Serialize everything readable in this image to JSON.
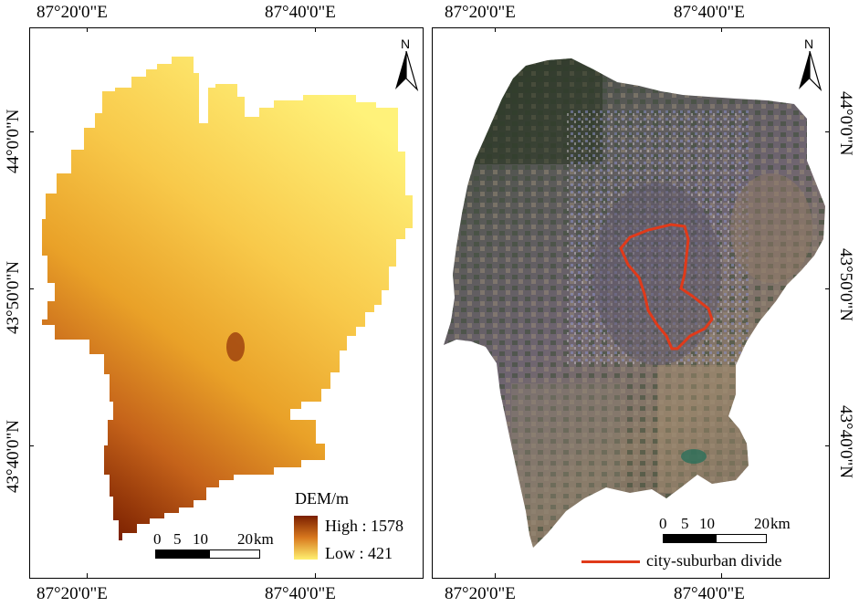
{
  "left_map": {
    "top_labels": [
      "87°20'0\"E",
      "87°40'0\"E"
    ],
    "bottom_labels": [
      "87°20'0\"E",
      "87°40'0\"E"
    ],
    "left_labels": [
      "43°40'0\"N",
      "43°50'0\"N",
      "44°0'0\"N"
    ],
    "north_label": "N",
    "legend": {
      "title": "DEM/m",
      "high": "High : 1578",
      "low": "Low : 421",
      "color_high": "#7a1f00",
      "color_low": "#fff070"
    },
    "scale": {
      "ticks": [
        "0",
        "5",
        "10",
        "20"
      ],
      "unit": "km"
    }
  },
  "right_map": {
    "top_labels": [
      "87°20'0\"E",
      "87°40'0\"E"
    ],
    "bottom_labels": [
      "87°20'0\"E",
      "87°40'0\"E"
    ],
    "right_labels": [
      "44°0'0\"N",
      "43°50'0\"N",
      "43°40'0\"N"
    ],
    "north_label": "N",
    "scale": {
      "ticks": [
        "0",
        "5",
        "10",
        "20"
      ],
      "unit": "km"
    },
    "legend": {
      "line_label": "city-suburban divide",
      "line_color": "#e03a1a"
    }
  }
}
